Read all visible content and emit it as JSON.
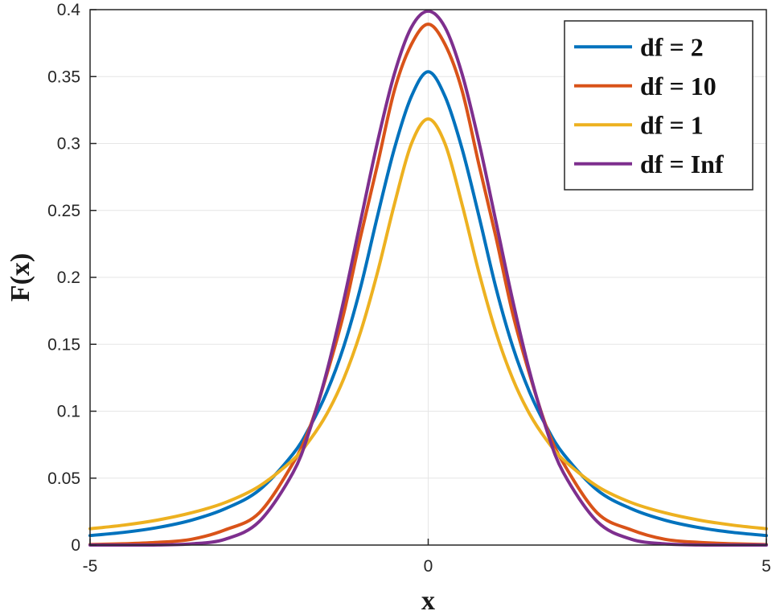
{
  "chart_data": {
    "type": "line",
    "title": "",
    "xlabel": "x",
    "ylabel": "F(x)",
    "xlim": [
      -5,
      5
    ],
    "ylim": [
      0,
      0.4
    ],
    "xticks": [
      -5,
      0,
      5
    ],
    "xtick_labels": [
      "-5",
      "0",
      "5"
    ],
    "yticks": [
      0,
      0.05,
      0.1,
      0.15,
      0.2,
      0.25,
      0.3,
      0.35,
      0.4
    ],
    "ytick_labels": [
      "0",
      "0.05",
      "0.1",
      "0.15",
      "0.2",
      "0.25",
      "0.3",
      "0.35",
      "0.4"
    ],
    "grid": true,
    "legend_position": "top-right",
    "x": [
      -5,
      -4.5,
      -4,
      -3.5,
      -3,
      -2.5,
      -2,
      -1.75,
      -1.5,
      -1.25,
      -1,
      -0.75,
      -0.5,
      -0.25,
      0,
      0.25,
      0.5,
      0.75,
      1,
      1.25,
      1.5,
      1.75,
      2,
      2.5,
      3,
      3.5,
      4,
      4.5,
      5
    ],
    "series": [
      {
        "name": "df = 2",
        "color": "#0072BD",
        "values": [
          0.0071,
          0.0095,
          0.0131,
          0.0186,
          0.0272,
          0.041,
          0.068,
          0.0883,
          0.1142,
          0.1482,
          0.1925,
          0.2458,
          0.2962,
          0.335,
          0.3536,
          0.335,
          0.2962,
          0.2458,
          0.1925,
          0.1482,
          0.1142,
          0.0883,
          0.068,
          0.041,
          0.0272,
          0.0186,
          0.0131,
          0.0095,
          0.0071
        ]
      },
      {
        "name": "df = 10",
        "color": "#D95319",
        "values": [
          0.0004,
          0.001,
          0.002,
          0.0043,
          0.0114,
          0.024,
          0.0611,
          0.088,
          0.1274,
          0.1728,
          0.2304,
          0.2842,
          0.3397,
          0.3739,
          0.3891,
          0.3739,
          0.3397,
          0.2842,
          0.2304,
          0.1728,
          0.1274,
          0.088,
          0.0611,
          0.024,
          0.0114,
          0.0043,
          0.002,
          0.001,
          0.0004
        ]
      },
      {
        "name": "df = 1",
        "color": "#EDB120",
        "values": [
          0.0122,
          0.0149,
          0.0187,
          0.0241,
          0.0318,
          0.0439,
          0.0637,
          0.0785,
          0.0979,
          0.1242,
          0.1592,
          0.2037,
          0.2546,
          0.2996,
          0.3183,
          0.2996,
          0.2546,
          0.2037,
          0.1592,
          0.1242,
          0.0979,
          0.0785,
          0.0637,
          0.0439,
          0.0318,
          0.0241,
          0.0187,
          0.0149,
          0.0122
        ]
      },
      {
        "name": "df = Inf",
        "color": "#7E2F8E",
        "values": [
          0.0,
          0.0,
          0.0001,
          0.0009,
          0.0044,
          0.0175,
          0.054,
          0.0863,
          0.1295,
          0.1826,
          0.242,
          0.3011,
          0.3521,
          0.3867,
          0.3989,
          0.3867,
          0.3521,
          0.3011,
          0.242,
          0.1826,
          0.1295,
          0.0863,
          0.054,
          0.0175,
          0.0044,
          0.0009,
          0.0001,
          0.0,
          0.0
        ]
      }
    ]
  }
}
